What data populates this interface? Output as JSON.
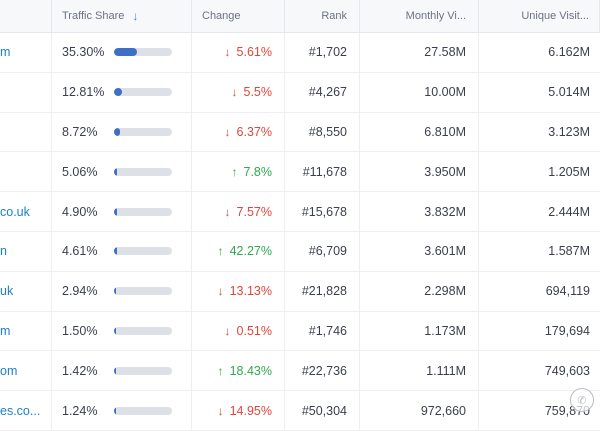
{
  "header": {
    "traffic_share": "Traffic Share",
    "change": "Change",
    "rank": "Rank",
    "monthly_visits": "Monthly Vi...",
    "unique_visitors": "Unique Visit..."
  },
  "rows": [
    {
      "domain": "m",
      "share": "35.30%",
      "share_value": 35.3,
      "change": "5.61%",
      "dir": "down",
      "rank": "#1,702",
      "visits": "27.58M",
      "unique": "6.162M"
    },
    {
      "domain": "",
      "share": "12.81%",
      "share_value": 12.81,
      "change": "5.5%",
      "dir": "down",
      "rank": "#4,267",
      "visits": "10.00M",
      "unique": "5.014M"
    },
    {
      "domain": "",
      "share": "8.72%",
      "share_value": 8.72,
      "change": "6.37%",
      "dir": "down",
      "rank": "#8,550",
      "visits": "6.810M",
      "unique": "3.123M"
    },
    {
      "domain": "",
      "share": "5.06%",
      "share_value": 5.06,
      "change": "7.8%",
      "dir": "up",
      "rank": "#11,678",
      "visits": "3.950M",
      "unique": "1.205M"
    },
    {
      "domain": "co.uk",
      "share": "4.90%",
      "share_value": 4.9,
      "change": "7.57%",
      "dir": "down",
      "rank": "#15,678",
      "visits": "3.832M",
      "unique": "2.444M"
    },
    {
      "domain": "n",
      "share": "4.61%",
      "share_value": 4.61,
      "change": "42.27%",
      "dir": "up",
      "rank": "#6,709",
      "visits": "3.601M",
      "unique": "1.587M"
    },
    {
      "domain": "uk",
      "share": "2.94%",
      "share_value": 2.94,
      "change": "13.13%",
      "dir": "down",
      "rank": "#21,828",
      "visits": "2.298M",
      "unique": "694,119"
    },
    {
      "domain": "m",
      "share": "1.50%",
      "share_value": 1.5,
      "change": "0.51%",
      "dir": "down",
      "rank": "#1,746",
      "visits": "1.173M",
      "unique": "179,694"
    },
    {
      "domain": "om",
      "share": "1.42%",
      "share_value": 1.42,
      "change": "18.43%",
      "dir": "up",
      "rank": "#22,736",
      "visits": "1.111M",
      "unique": "749,603"
    },
    {
      "domain": "es.co...",
      "share": "1.24%",
      "share_value": 1.24,
      "change": "14.95%",
      "dir": "down",
      "rank": "#50,304",
      "visits": "972,660",
      "unique": "759,870"
    }
  ],
  "icons": {
    "sort": "arrow-down-icon",
    "change_down": "arrow-down-icon",
    "change_up": "arrow-up-icon",
    "watermark": "wechat-icon"
  },
  "colors": {
    "down": "#e0453b",
    "up": "#2fa84f",
    "bar_fill": "#3d6fc4",
    "link": "#1a7fd0"
  }
}
